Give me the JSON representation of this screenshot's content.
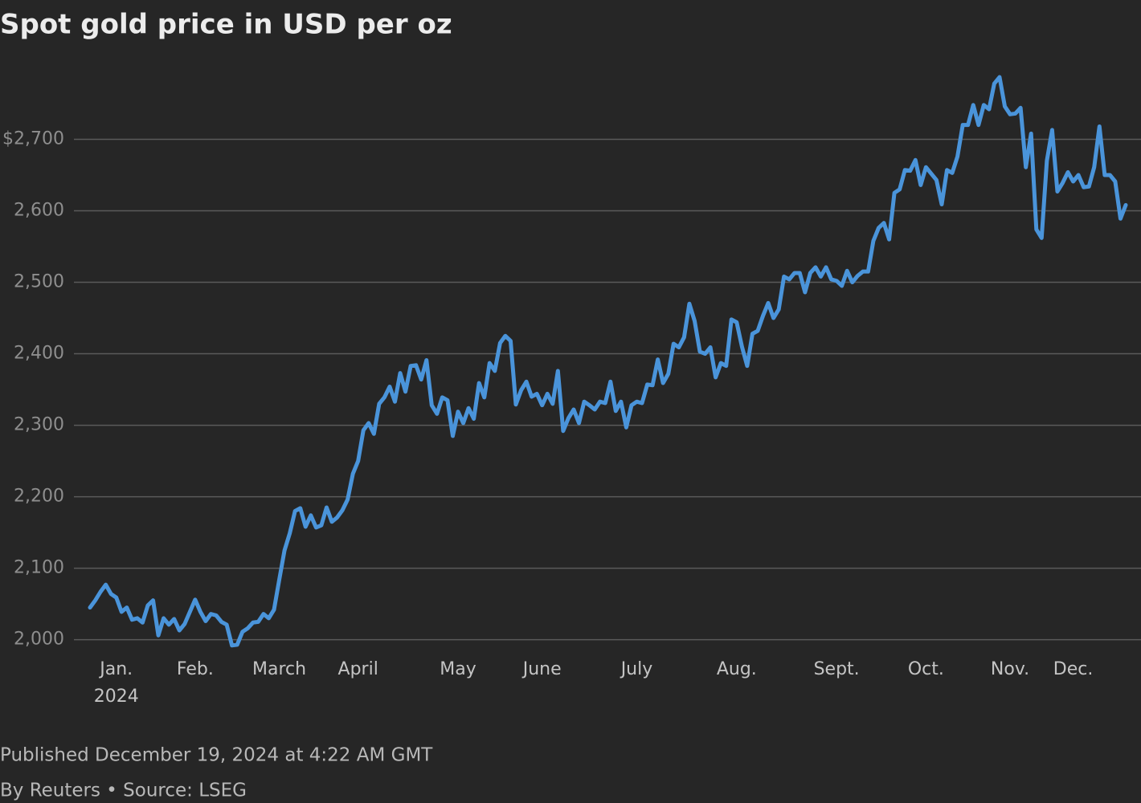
{
  "chart_data": {
    "type": "line",
    "title": "Spot gold price in USD per oz",
    "published": "Published December 19, 2024 at 4:22 AM GMT",
    "credit": "By Reuters • Source: LSEG",
    "year_label": "2024",
    "categories": [
      null,
      null,
      null,
      null,
      null,
      "Jan.",
      null,
      null,
      null,
      null,
      null,
      null,
      null,
      null,
      null,
      null,
      null,
      null,
      null,
      null,
      "Feb.",
      null,
      null,
      null,
      null,
      null,
      null,
      null,
      null,
      null,
      null,
      null,
      null,
      null,
      null,
      null,
      "March",
      null,
      null,
      null,
      null,
      null,
      null,
      null,
      null,
      null,
      null,
      null,
      null,
      null,
      null,
      "April",
      null,
      null,
      null,
      null,
      null,
      null,
      null,
      null,
      null,
      null,
      null,
      null,
      null,
      null,
      null,
      null,
      null,
      null,
      "May",
      null,
      null,
      null,
      null,
      null,
      null,
      null,
      null,
      null,
      null,
      null,
      null,
      null,
      null,
      null,
      "June",
      null,
      null,
      null,
      null,
      null,
      null,
      null,
      null,
      null,
      null,
      null,
      null,
      null,
      null,
      null,
      null,
      null,
      "July",
      null,
      null,
      null,
      null,
      null,
      null,
      null,
      null,
      null,
      null,
      null,
      null,
      null,
      null,
      null,
      null,
      null,
      null,
      "Aug.",
      null,
      null,
      null,
      null,
      null,
      null,
      null,
      null,
      null,
      null,
      null,
      null,
      null,
      null,
      null,
      null,
      null,
      null,
      "Sept.",
      null,
      null,
      null,
      null,
      null,
      null,
      null,
      null,
      null,
      null,
      null,
      null,
      null,
      null,
      null,
      null,
      "Oct.",
      null,
      null,
      null,
      null,
      null,
      null,
      null,
      null,
      null,
      null,
      null,
      null,
      null,
      null,
      null,
      "Nov.",
      null,
      null,
      null,
      null,
      null,
      null,
      null,
      null,
      null,
      null,
      null,
      "Dec.",
      null,
      null,
      null,
      null,
      null,
      null,
      null,
      null,
      null,
      null
    ],
    "series": [
      {
        "name": "Spot gold",
        "color": "#4a94da",
        "values": [
          2045,
          2055,
          2067,
          2077,
          2064,
          2059,
          2039,
          2045,
          2028,
          2030,
          2024,
          2048,
          2055,
          2006,
          2030,
          2021,
          2029,
          2013,
          2022,
          2039,
          2056,
          2039,
          2026,
          2036,
          2034,
          2025,
          2021,
          1992,
          1993,
          2011,
          2016,
          2024,
          2025,
          2036,
          2030,
          2042,
          2084,
          2125,
          2149,
          2180,
          2184,
          2158,
          2174,
          2157,
          2160,
          2185,
          2165,
          2171,
          2181,
          2196,
          2232,
          2250,
          2293,
          2303,
          2288,
          2330,
          2339,
          2354,
          2333,
          2373,
          2347,
          2383,
          2384,
          2364,
          2391,
          2328,
          2316,
          2339,
          2335,
          2285,
          2319,
          2303,
          2324,
          2309,
          2359,
          2339,
          2387,
          2376,
          2415,
          2425,
          2418,
          2329,
          2349,
          2361,
          2340,
          2344,
          2328,
          2344,
          2330,
          2376,
          2292,
          2310,
          2322,
          2303,
          2333,
          2328,
          2322,
          2333,
          2331,
          2361,
          2320,
          2333,
          2297,
          2328,
          2333,
          2331,
          2357,
          2356,
          2392,
          2359,
          2372,
          2414,
          2409,
          2423,
          2470,
          2446,
          2403,
          2400,
          2409,
          2367,
          2387,
          2383,
          2448,
          2444,
          2410,
          2383,
          2428,
          2432,
          2453,
          2471,
          2450,
          2462,
          2508,
          2504,
          2513,
          2513,
          2486,
          2513,
          2521,
          2508,
          2521,
          2504,
          2502,
          2495,
          2516,
          2500,
          2509,
          2515,
          2515,
          2558,
          2576,
          2583,
          2560,
          2625,
          2630,
          2657,
          2656,
          2671,
          2636,
          2661,
          2652,
          2643,
          2609,
          2657,
          2653,
          2676,
          2720,
          2720,
          2748,
          2720,
          2748,
          2742,
          2778,
          2787,
          2746,
          2735,
          2736,
          2744,
          2661,
          2708,
          2574,
          2562,
          2670,
          2713,
          2627,
          2639,
          2654,
          2641,
          2650,
          2633,
          2634,
          2661,
          2718,
          2650,
          2650,
          2641,
          2589,
          2608
        ]
      }
    ],
    "ylim": [
      1985,
      2805
    ],
    "yticks": [
      {
        "value": 2000,
        "label": "2,000"
      },
      {
        "value": 2100,
        "label": "2,100"
      },
      {
        "value": 2200,
        "label": "2,200"
      },
      {
        "value": 2300,
        "label": "2,300"
      },
      {
        "value": 2400,
        "label": "2,400"
      },
      {
        "value": 2500,
        "label": "2,500"
      },
      {
        "value": 2600,
        "label": "2,600"
      },
      {
        "value": 2700,
        "label": "$2,700"
      }
    ],
    "grid": true
  }
}
